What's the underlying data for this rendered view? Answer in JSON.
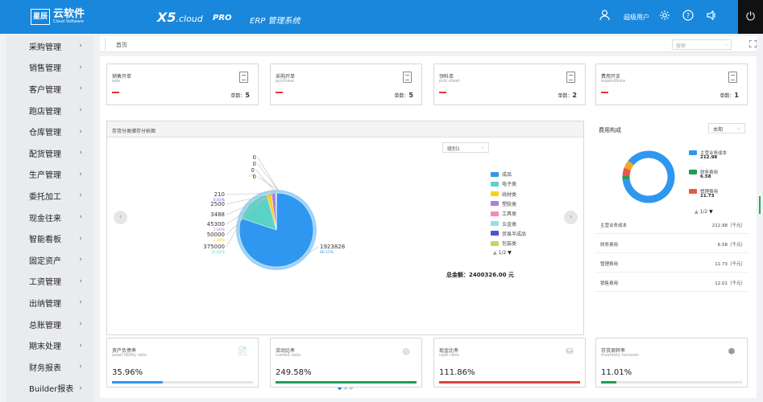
{
  "header": {
    "logo_box": "星辰",
    "logo_name": "云软件",
    "logo_sub": "Cloud Software",
    "brand": "X5",
    "brand_suffix": ".cloud",
    "pro": "PRO",
    "erp": "ERP 管理系统",
    "user": "超级用户"
  },
  "sidebar": {
    "items": [
      {
        "label": "采购管理"
      },
      {
        "label": "销售管理"
      },
      {
        "label": "客户管理"
      },
      {
        "label": "跑店管理"
      },
      {
        "label": "仓库管理"
      },
      {
        "label": "配货管理"
      },
      {
        "label": "生产管理"
      },
      {
        "label": "委托加工"
      },
      {
        "label": "现金往来"
      },
      {
        "label": "智能看板"
      },
      {
        "label": "固定资产"
      },
      {
        "label": "工资管理"
      },
      {
        "label": "出纳管理"
      },
      {
        "label": "总账管理"
      },
      {
        "label": "期末处理"
      },
      {
        "label": "财务报表"
      },
      {
        "label": "Builder报表"
      }
    ]
  },
  "tabs": {
    "home": "首页",
    "search_placeholder": "搜索"
  },
  "summary_cards": [
    {
      "title": "销售开单",
      "subtitle": "sale",
      "dash": "—",
      "count_label": "单数：",
      "count": "5"
    },
    {
      "title": "采购开单",
      "subtitle": "purchase",
      "dash": "—",
      "count_label": "单数：",
      "count": "5"
    },
    {
      "title": "领料单",
      "subtitle": "pick sheet",
      "dash": "—",
      "count_label": "单数：",
      "count": "2"
    },
    {
      "title": "费用开支",
      "subtitle": "expenditure",
      "dash": "—",
      "count_label": "单数：",
      "count": "1"
    }
  ],
  "inventory_panel": {
    "title": "存货分类储存分析图",
    "level_select": "级别1",
    "pager": "1/2",
    "total": "总金额：2400326.00 元"
  },
  "chart_data": {
    "type": "pie",
    "categories": [
      "成品",
      "电子类",
      "线材类",
      "塑胶类",
      "工具类",
      "五金类",
      "贸易半成品",
      "包装类"
    ],
    "values": [
      1923828,
      375000,
      50000,
      45300,
      3488,
      2500,
      210,
      0
    ],
    "colors": [
      "#2f97f0",
      "#5bd2c6",
      "#f5d21e",
      "#b07ed9",
      "#f58bb4",
      "#9adcf0",
      "#4a56d0",
      "#b9dc5e"
    ],
    "value_labels": [
      "1923828",
      "375000",
      "50000",
      "45300",
      "3488",
      "2500",
      "210",
      "0"
    ],
    "percent_labels": [
      "80.15%",
      "15.62%",
      "2.08%",
      "1.89%",
      "",
      "",
      "0.01%",
      "0%"
    ],
    "extra_zero_labels": [
      "0",
      "0",
      "0"
    ]
  },
  "cost_panel": {
    "title": "费用构成",
    "period": "本期",
    "legend": [
      {
        "name": "主营业务成本",
        "value": "212.98",
        "color": "#2f97f0"
      },
      {
        "name": "财务费用",
        "value": "6.58",
        "color": "#1f9d55"
      },
      {
        "name": "管理费用",
        "value": "11.73",
        "color": "#e4594a"
      }
    ],
    "donut_values": [
      212.98,
      6.58,
      11.73,
      12.01
    ],
    "donut_colors": [
      "#2f97f0",
      "#1f9d55",
      "#e4594a",
      "#f5a623"
    ],
    "pager": "1/2",
    "rows": [
      {
        "label": "主营业务成本",
        "value": "212.98（千元）"
      },
      {
        "label": "财务费用",
        "value": "6.58（千元）"
      },
      {
        "label": "管理费用",
        "value": "11.73（千元）"
      },
      {
        "label": "销售费用",
        "value": "12.01（千元）"
      }
    ]
  },
  "ratio_cards": [
    {
      "title": "资产负债率",
      "subtitle": "asset libility ratio",
      "value": "35.96%",
      "fill": 0.36,
      "color": "#2f97f0"
    },
    {
      "title": "流动比率",
      "subtitle": "current ratio",
      "value": "249.58%",
      "fill": 1.0,
      "color": "#1f9d55"
    },
    {
      "title": "现金比率",
      "subtitle": "cash ratio",
      "value": "111.86%",
      "fill": 1.0,
      "color": "#d9443a"
    },
    {
      "title": "存货周转率",
      "subtitle": "inventory turnover",
      "value": "11.01%",
      "fill": 0.11,
      "color": "#1f9d55"
    }
  ]
}
